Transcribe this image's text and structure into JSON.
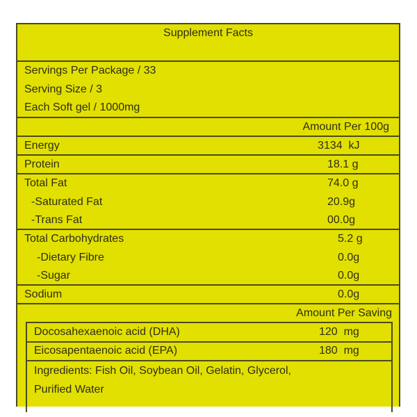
{
  "title": "Supplement Facts",
  "serving_info": [
    "Servings Per Package / 33",
    "Serving Size / 3",
    "Each Soft gel / 1000mg"
  ],
  "per100_header": "Amount Per 100g",
  "nutrients": [
    {
      "label": "Energy",
      "value": "3134  kJ"
    },
    {
      "label": "Protein",
      "value": "18.1 g"
    },
    {
      "label": "Total Fat",
      "value": "74.0 g"
    },
    {
      "label": "-Saturated Fat",
      "value": "20.9g"
    },
    {
      "label": "-Trans Fat",
      "value": "00.0g"
    },
    {
      "label": "Total Carbohydrates",
      "value": "5.2 g"
    },
    {
      "label": "-Dietary Fibre",
      "value": "0.0g"
    },
    {
      "label": "-Sugar",
      "value": "0.0g"
    },
    {
      "label": "Sodium",
      "value": "0.0g"
    }
  ],
  "per_serving_header": "Amount Per Saving",
  "per_serving": [
    {
      "label": "Docosahexaenoic acid (DHA)",
      "value": "120  mg"
    },
    {
      "label": "Eicosapentaenoic acid (EPA)",
      "value": "180  mg"
    }
  ],
  "ingredients": [
    "Ingredients: Fish Oil, Soybean Oil, Gelatin, Glycerol,",
    "Purified Water"
  ],
  "colors": {
    "background": "#e2e000",
    "text": "#2e2e14",
    "border": "#4a4a20"
  }
}
